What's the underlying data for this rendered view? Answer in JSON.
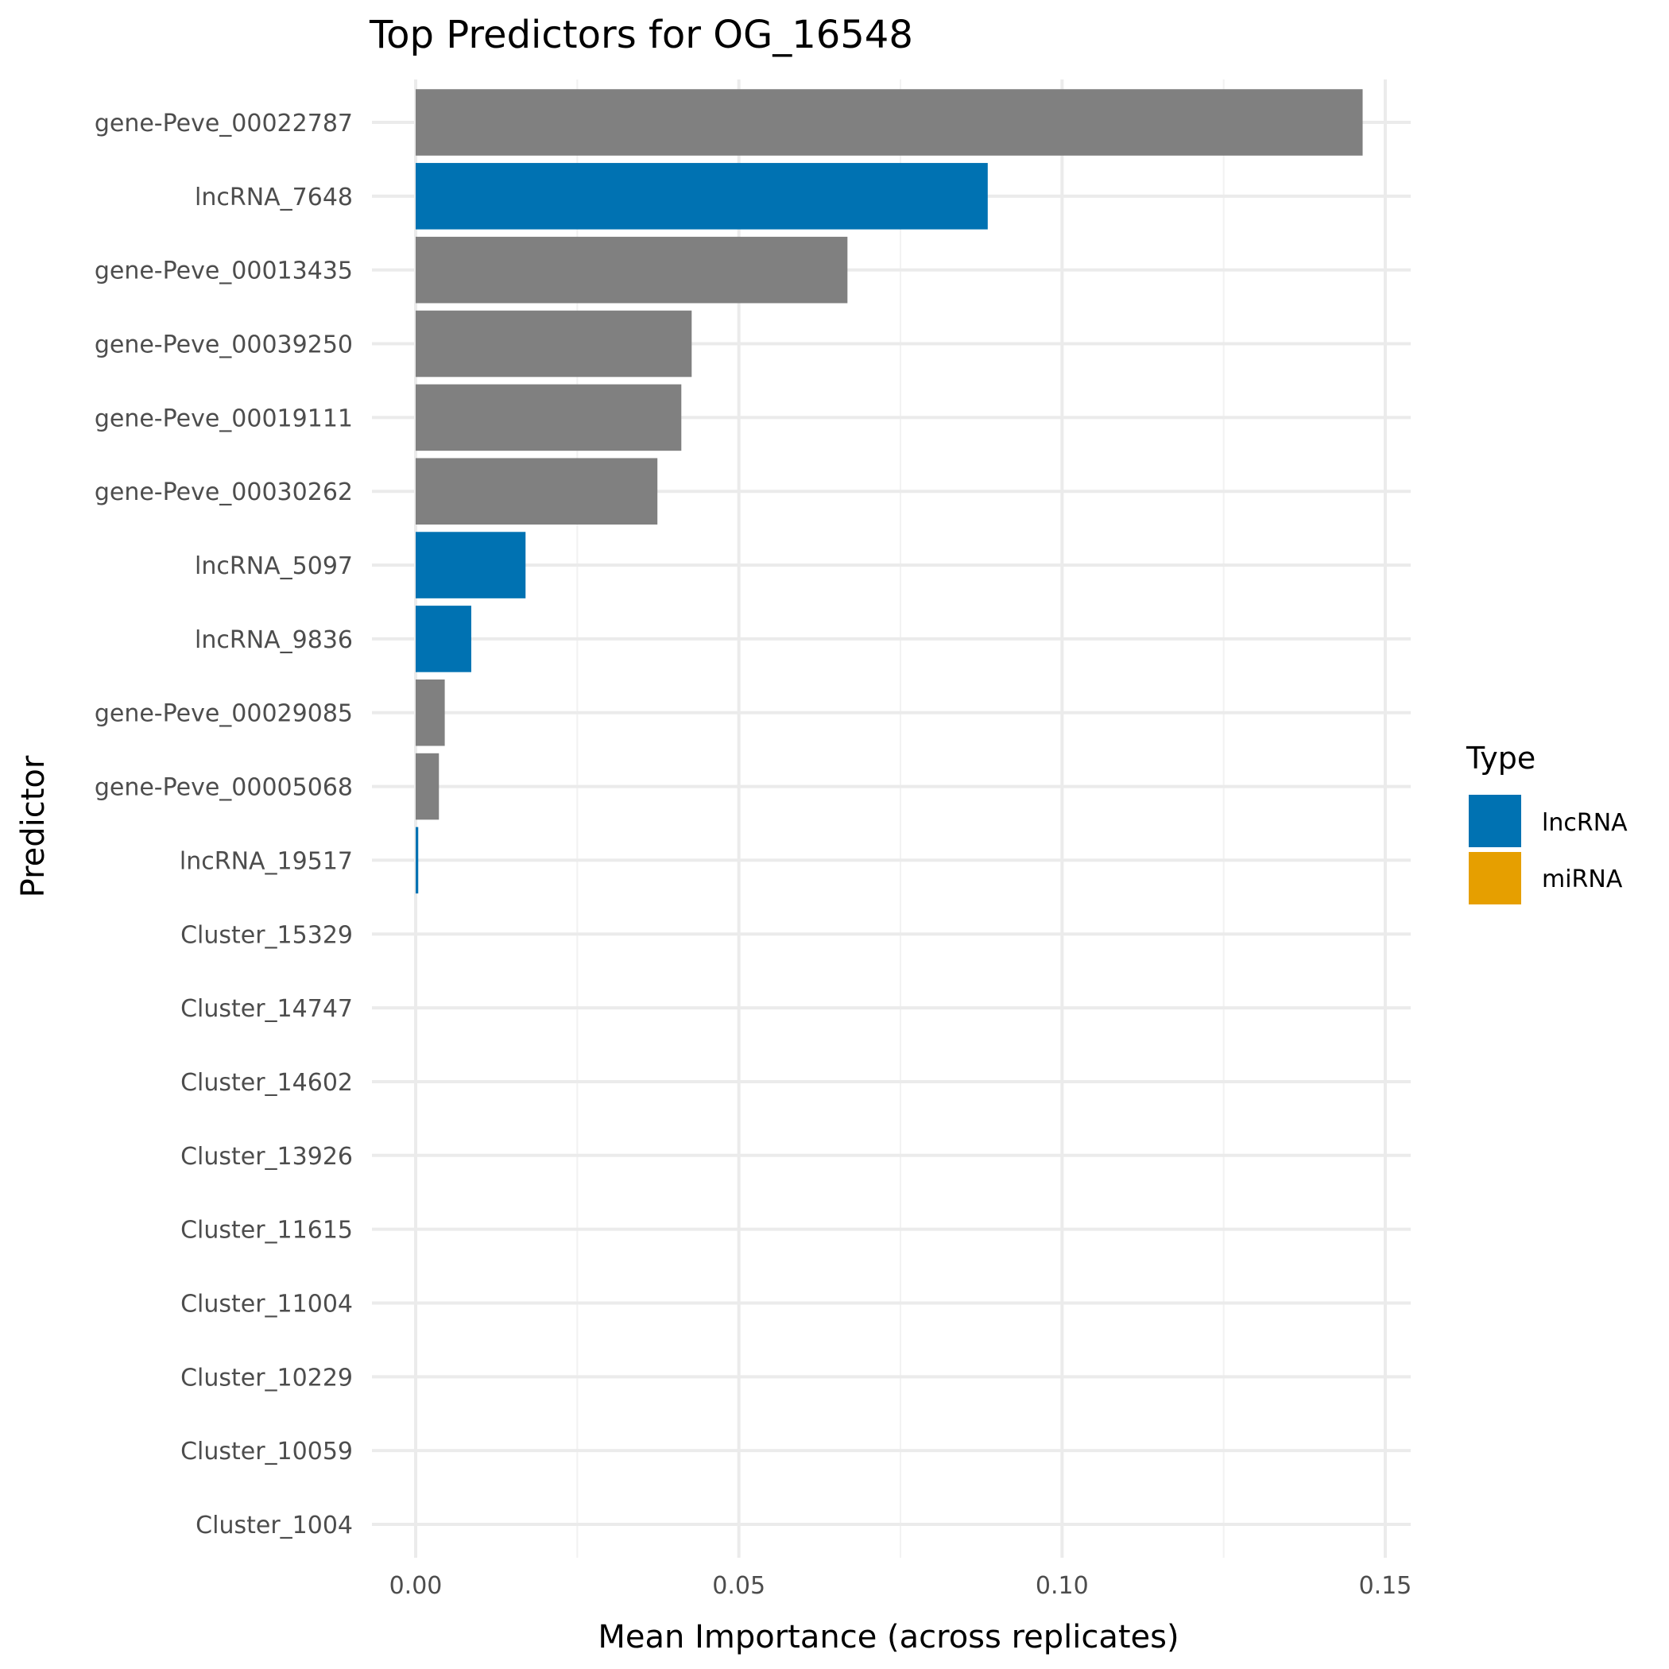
{
  "chart_data": {
    "type": "bar",
    "orientation": "horizontal",
    "title": "Top Predictors for OG_16548",
    "xlabel": "Mean Importance (across replicates)",
    "ylabel": "Predictor",
    "xlim": [
      0,
      0.15
    ],
    "xticks": [
      "0.00",
      "0.05",
      "0.10",
      "0.15"
    ],
    "xtick_values": [
      0,
      0.05,
      0.1,
      0.15
    ],
    "grid": true,
    "legend": {
      "title": "Type",
      "placement": "right",
      "entries": [
        {
          "label": "lncRNA",
          "color": "#0072B2"
        },
        {
          "label": "miRNA",
          "color": "#E69F00"
        }
      ]
    },
    "gene_color": "#808080",
    "categories": [
      "gene-Peve_00022787",
      "lncRNA_7648",
      "gene-Peve_00013435",
      "gene-Peve_00039250",
      "gene-Peve_00019111",
      "gene-Peve_00030262",
      "lncRNA_5097",
      "lncRNA_9836",
      "gene-Peve_00029085",
      "gene-Peve_00005068",
      "lncRNA_19517",
      "Cluster_15329",
      "Cluster_14747",
      "Cluster_14602",
      "Cluster_13926",
      "Cluster_11615",
      "Cluster_11004",
      "Cluster_10229",
      "Cluster_10059",
      "Cluster_1004"
    ],
    "values": [
      0.1465,
      0.0885,
      0.0668,
      0.0427,
      0.0411,
      0.0374,
      0.017,
      0.0086,
      0.0045,
      0.0036,
      0.0004,
      0,
      0,
      0,
      0,
      0,
      0,
      0,
      0,
      0
    ],
    "types": [
      "gene",
      "lncRNA",
      "gene",
      "gene",
      "gene",
      "gene",
      "lncRNA",
      "lncRNA",
      "gene",
      "gene",
      "lncRNA",
      "miRNA",
      "miRNA",
      "miRNA",
      "miRNA",
      "miRNA",
      "miRNA",
      "miRNA",
      "miRNA",
      "miRNA"
    ]
  }
}
